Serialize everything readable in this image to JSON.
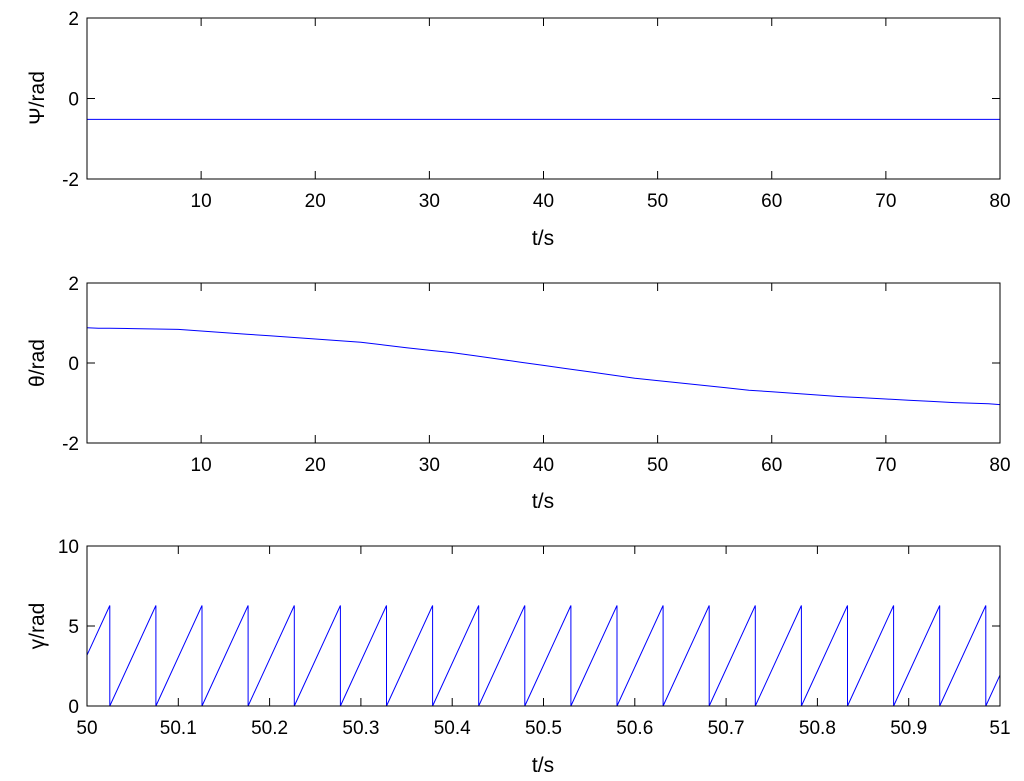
{
  "chart_data": [
    {
      "type": "line",
      "ylabel": "Ψ/rad",
      "xlabel": "t/s",
      "xlim": [
        0,
        80
      ],
      "ylim": [
        -2,
        2
      ],
      "xticks": [
        10,
        20,
        30,
        40,
        50,
        60,
        70,
        80
      ],
      "xtick_labels": [
        "10",
        "20",
        "30",
        "40",
        "50",
        "60",
        "70",
        "80"
      ],
      "yticks": [
        -2,
        0,
        2
      ],
      "ytick_labels": [
        "-2",
        "0",
        "2"
      ],
      "grid": false,
      "color": "#0000ff",
      "series": [
        {
          "x": [
            0,
            80
          ],
          "y": [
            -0.52,
            -0.52
          ]
        }
      ]
    },
    {
      "type": "line",
      "ylabel": "θ/rad",
      "xlabel": "t/s",
      "xlim": [
        0,
        80
      ],
      "ylim": [
        -2,
        2
      ],
      "xticks": [
        10,
        20,
        30,
        40,
        50,
        60,
        70,
        80
      ],
      "xtick_labels": [
        "10",
        "20",
        "30",
        "40",
        "50",
        "60",
        "70",
        "80"
      ],
      "yticks": [
        -2,
        0,
        2
      ],
      "ytick_labels": [
        "-2",
        "0",
        "2"
      ],
      "grid": false,
      "color": "#0000ff",
      "series": [
        {
          "x": [
            0,
            1,
            2,
            4,
            6,
            8,
            10,
            12,
            14,
            16,
            18,
            20,
            22,
            24,
            26,
            28,
            30,
            32,
            34,
            36,
            38,
            40,
            42,
            44,
            46,
            48,
            50,
            52,
            54,
            56,
            58,
            60,
            62,
            64,
            66,
            68,
            70,
            72,
            74,
            76,
            78,
            79,
            80
          ],
          "y": [
            0.88,
            0.87,
            0.87,
            0.86,
            0.85,
            0.84,
            0.8,
            0.76,
            0.72,
            0.68,
            0.64,
            0.6,
            0.56,
            0.52,
            0.45,
            0.38,
            0.32,
            0.26,
            0.18,
            0.1,
            0.02,
            -0.06,
            -0.14,
            -0.22,
            -0.3,
            -0.38,
            -0.44,
            -0.5,
            -0.56,
            -0.62,
            -0.68,
            -0.72,
            -0.76,
            -0.8,
            -0.84,
            -0.87,
            -0.9,
            -0.93,
            -0.96,
            -0.99,
            -1.01,
            -1.02,
            -1.04
          ]
        }
      ]
    },
    {
      "type": "line",
      "ylabel": "γ/rad",
      "xlabel": "t/s",
      "xlim": [
        50,
        51
      ],
      "ylim": [
        0,
        10
      ],
      "xticks": [
        50,
        50.1,
        50.2,
        50.3,
        50.4,
        50.5,
        50.6,
        50.7,
        50.8,
        50.9,
        51
      ],
      "xtick_labels": [
        "50",
        "50.1",
        "50.2",
        "50.3",
        "50.4",
        "50.5",
        "50.6",
        "50.7",
        "50.8",
        "50.9",
        "51"
      ],
      "yticks": [
        0,
        5,
        10
      ],
      "ytick_labels": [
        "0",
        "5",
        "10"
      ],
      "grid": false,
      "color": "#0000ff",
      "sawtooth": {
        "period": 0.0505,
        "first_drop": 50.025,
        "y_min": 0,
        "y_max": 6.283
      }
    }
  ]
}
